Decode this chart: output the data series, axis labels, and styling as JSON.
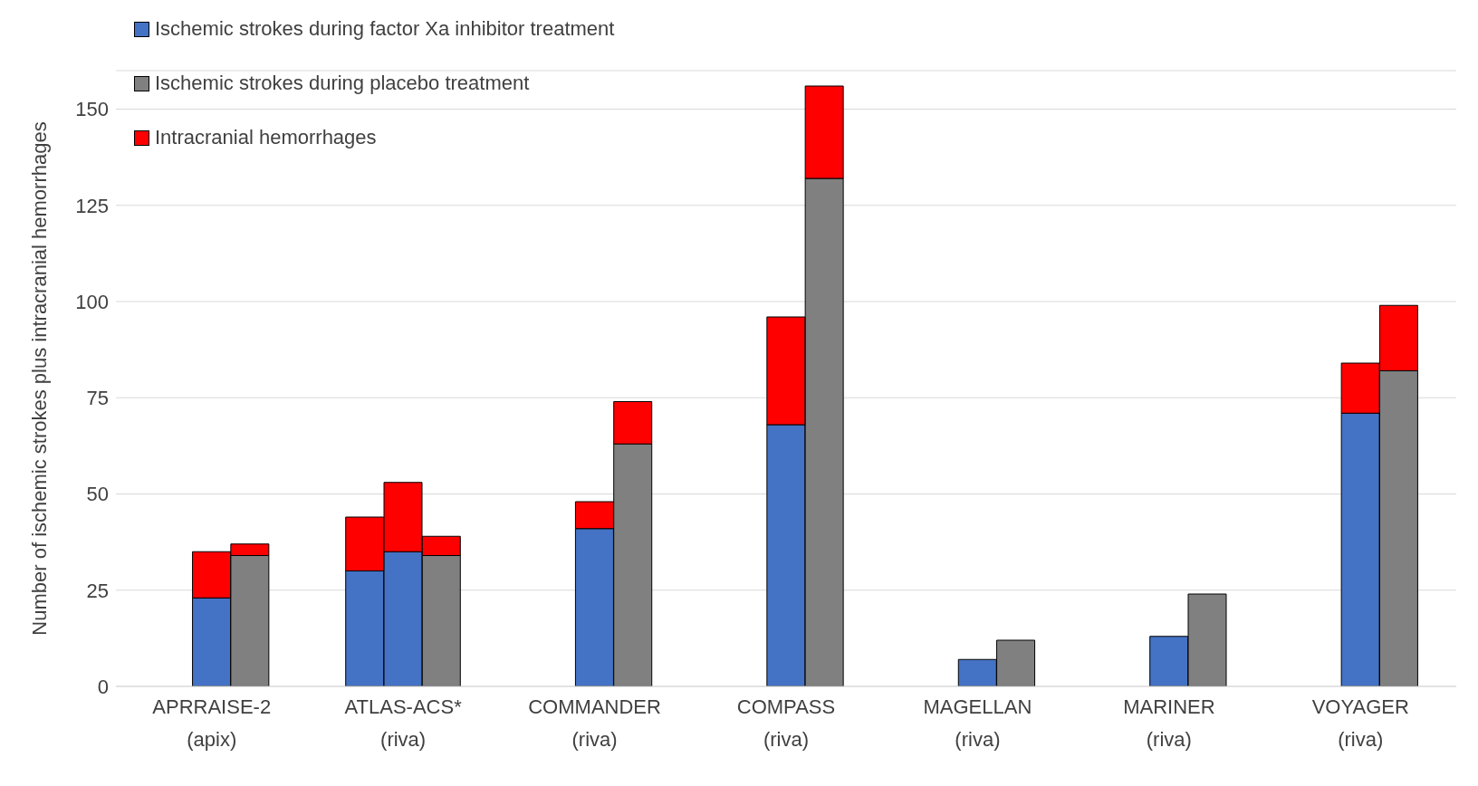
{
  "chart_data": {
    "type": "bar",
    "stacked": true,
    "ylabel": "Number of ischemic strokes plus intracranial hemorrhages",
    "categories": [
      null,
      null,
      "APRRAISE-2\n(apix)",
      null,
      null,
      null,
      null,
      "ATLAS-ACS*\n(riva)",
      null,
      null,
      null,
      null,
      "COMMANDER\n(riva)",
      null,
      null,
      null,
      null,
      "COMPASS\n(riva)",
      null,
      null,
      null,
      null,
      "MAGELLAN\n(riva)",
      null,
      null,
      null,
      null,
      "MARINER\n(riva)",
      null,
      null,
      null,
      null,
      "VOYAGER\n(riva)",
      null,
      null
    ],
    "series": [
      {
        "name": "Ischemic strokes during factor Xa inhibitor treatment",
        "color": "#4472c4",
        "values": [
          null,
          null,
          23,
          null,
          null,
          null,
          30,
          35,
          null,
          null,
          null,
          null,
          41,
          null,
          null,
          null,
          null,
          68,
          null,
          null,
          null,
          null,
          7,
          null,
          null,
          null,
          null,
          13,
          null,
          null,
          null,
          null,
          71,
          null,
          null
        ]
      },
      {
        "name": "Ischemic strokes during placebo treatment",
        "color": "#808080",
        "values": [
          null,
          null,
          null,
          34,
          null,
          null,
          null,
          null,
          34,
          null,
          null,
          null,
          null,
          63,
          null,
          null,
          null,
          null,
          132,
          null,
          null,
          null,
          null,
          12,
          null,
          null,
          null,
          null,
          24,
          null,
          null,
          null,
          null,
          82,
          null
        ]
      },
      {
        "name": "Intracranial hemorrhages",
        "color": "#ff0000",
        "values": [
          null,
          null,
          12,
          3,
          null,
          null,
          14,
          18,
          5,
          null,
          null,
          null,
          7,
          11,
          null,
          null,
          null,
          28,
          24,
          null,
          null,
          null,
          null,
          null,
          null,
          null,
          null,
          null,
          null,
          null,
          null,
          null,
          13,
          17,
          null
        ]
      }
    ],
    "ylim": [
      0,
      160
    ],
    "yticks": [
      0,
      25,
      50,
      75,
      100,
      125,
      150
    ],
    "grid": "y",
    "legend": "top left"
  }
}
